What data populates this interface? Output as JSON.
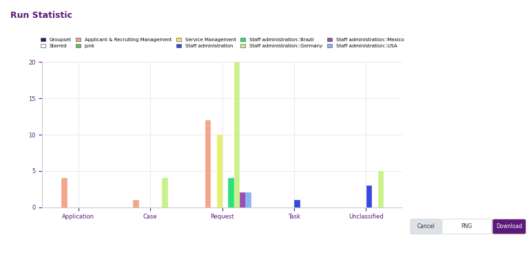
{
  "chart_data": {
    "type": "bar",
    "title": "Run Statistic",
    "categories": [
      "Application",
      "Case",
      "Request",
      "Task",
      "Unclassified"
    ],
    "series": [
      {
        "name": "Groupset",
        "color": "#1f2350",
        "values": [
          0,
          0,
          0,
          0,
          0
        ]
      },
      {
        "name": "Starred",
        "color": "#ffffff",
        "values": [
          0,
          0,
          0,
          0,
          0
        ]
      },
      {
        "name": "Applicant & Recruiting Management",
        "color": "#f4a58a",
        "values": [
          4,
          1,
          12,
          0,
          0
        ]
      },
      {
        "name": "Junk",
        "color": "#6fbf5f",
        "values": [
          0,
          0,
          0,
          0,
          0
        ]
      },
      {
        "name": "Service Management",
        "color": "#e6ef6e",
        "values": [
          0,
          0,
          10,
          0,
          0
        ]
      },
      {
        "name": "Staff administration",
        "color": "#3449e0",
        "values": [
          0,
          0,
          0,
          1,
          3
        ]
      },
      {
        "name": "Staff administration::Brazil",
        "color": "#2ee07a",
        "values": [
          0,
          0,
          4,
          0,
          0
        ]
      },
      {
        "name": "Staff administration::Germany",
        "color": "#c9f28a",
        "values": [
          0,
          4,
          20,
          0,
          5
        ]
      },
      {
        "name": "Staff administration::Mexico",
        "color": "#9b4fb0",
        "values": [
          0,
          0,
          2,
          0,
          0
        ]
      },
      {
        "name": "Staff administration::USA",
        "color": "#8ab4f2",
        "values": [
          0,
          0,
          2,
          0,
          0
        ]
      }
    ],
    "ylim": [
      0,
      20
    ],
    "yticks": [
      0,
      5,
      10,
      15,
      20
    ],
    "grid": true,
    "legend": "upper center"
  },
  "dialog": {
    "buttons": [
      "Cancel",
      "PNG",
      "Download"
    ]
  }
}
